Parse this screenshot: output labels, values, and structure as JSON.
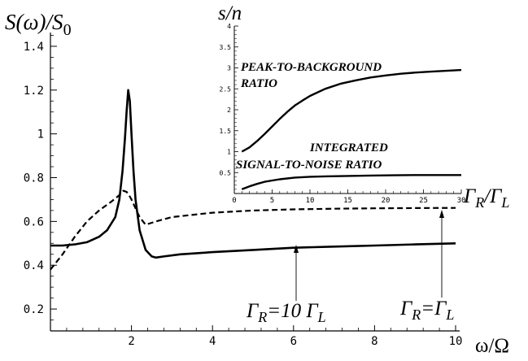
{
  "chart_data": [
    {
      "type": "line",
      "ylabel": "S(ω)/S0",
      "ylabel_parts": {
        "main": "S(ω)/S",
        "sub": "0"
      },
      "xlabel": "ω/Ω",
      "xlim": [
        0,
        10
      ],
      "ylim": [
        0.1,
        1.5
      ],
      "xticks": [
        2,
        4,
        6,
        8,
        10
      ],
      "xtick_labels": [
        "2",
        "4",
        "6",
        "8",
        "10"
      ],
      "yticks": [
        0.2,
        0.4,
        0.6,
        0.8,
        1.0,
        1.2,
        1.4
      ],
      "ytick_labels": [
        "0.2",
        "0.4",
        "0.6",
        "0.8",
        "1",
        "1.2",
        "1.4"
      ],
      "grid": false,
      "series": [
        {
          "style": "solid",
          "color": "#000000",
          "x": [
            0.0,
            0.3,
            0.6,
            0.9,
            1.2,
            1.4,
            1.6,
            1.7,
            1.78,
            1.84,
            1.88,
            1.92,
            1.96,
            2.0,
            2.05,
            2.1,
            2.2,
            2.35,
            2.5,
            2.6,
            2.8,
            3.2,
            4.0,
            5.0,
            6.0,
            7.0,
            8.0,
            9.0,
            10.0
          ],
          "y": [
            0.49,
            0.49,
            0.495,
            0.505,
            0.53,
            0.56,
            0.62,
            0.7,
            0.83,
            0.98,
            1.1,
            1.2,
            1.15,
            1.0,
            0.83,
            0.7,
            0.56,
            0.47,
            0.44,
            0.435,
            0.44,
            0.45,
            0.46,
            0.47,
            0.48,
            0.485,
            0.49,
            0.495,
            0.5
          ]
        },
        {
          "style": "dashed",
          "color": "#000000",
          "x": [
            0.0,
            0.3,
            0.6,
            0.9,
            1.2,
            1.5,
            1.7,
            1.8,
            1.88,
            1.94,
            2.0,
            2.1,
            2.2,
            2.35,
            2.6,
            3.0,
            4.0,
            5.0,
            6.0,
            7.0,
            8.0,
            9.0,
            10.0
          ],
          "y": [
            0.38,
            0.45,
            0.53,
            0.6,
            0.65,
            0.69,
            0.72,
            0.74,
            0.735,
            0.72,
            0.7,
            0.66,
            0.62,
            0.585,
            0.6,
            0.62,
            0.64,
            0.65,
            0.655,
            0.658,
            0.66,
            0.661,
            0.662
          ]
        }
      ],
      "annotations": [
        {
          "text_main": "Γ",
          "text_sub": "R",
          "text_mid": "/Γ",
          "text_sub2": "L",
          "full": "ΓR/ΓL"
        },
        {
          "text_main": "Γ",
          "text_sub": "R",
          "text_mid": "=10 Γ",
          "text_sub2": "L",
          "full": "ΓR=10 ΓL",
          "arrow_to": [
            6.0,
            0.48
          ]
        },
        {
          "text_main": "Γ",
          "text_sub": "R",
          "text_mid": "=Γ",
          "text_sub2": "L",
          "full": "ΓR=ΓL",
          "arrow_to": [
            9.75,
            0.66
          ]
        }
      ]
    },
    {
      "type": "line",
      "ylabel": "s/n",
      "xlim": [
        0,
        30
      ],
      "ylim": [
        0,
        4
      ],
      "xticks": [
        0,
        5,
        10,
        15,
        20,
        25,
        30
      ],
      "xtick_labels": [
        "0",
        "5",
        "10",
        "15",
        "20",
        "25",
        "30"
      ],
      "yticks": [
        0.5,
        1,
        1.5,
        2,
        2.5,
        3,
        3.5,
        4
      ],
      "ytick_labels": [
        "0.5",
        "1",
        "1.5",
        "2",
        "2.5",
        "3",
        "3.5",
        "4"
      ],
      "grid": false,
      "series": [
        {
          "name_lines": [
            "PEAK-TO-BACKGROUND",
            "RATIO"
          ],
          "x": [
            1,
            2,
            3,
            4,
            5,
            6,
            7,
            8,
            9,
            10,
            12,
            14,
            16,
            18,
            20,
            22,
            24,
            26,
            28,
            30
          ],
          "y": [
            1.0,
            1.1,
            1.25,
            1.42,
            1.6,
            1.78,
            1.95,
            2.1,
            2.22,
            2.33,
            2.5,
            2.62,
            2.7,
            2.77,
            2.82,
            2.86,
            2.89,
            2.91,
            2.93,
            2.95
          ]
        },
        {
          "name_lines": [
            "INTEGRATED",
            "SIGNAL-TO-NOISE RATIO"
          ],
          "x": [
            1,
            2,
            3,
            4,
            5,
            6,
            8,
            10,
            12,
            15,
            18,
            21,
            24,
            27,
            30
          ],
          "y": [
            0.1,
            0.17,
            0.23,
            0.28,
            0.31,
            0.34,
            0.38,
            0.4,
            0.41,
            0.42,
            0.43,
            0.435,
            0.44,
            0.44,
            0.44
          ]
        }
      ]
    }
  ]
}
